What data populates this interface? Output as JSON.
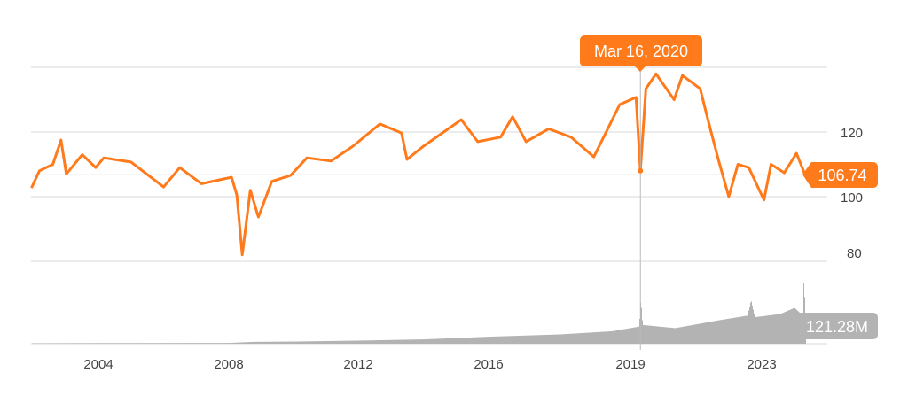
{
  "chart_data": {
    "type": "line",
    "title": "",
    "xlabel": "",
    "ylabel": "",
    "ylim": [
      75,
      140
    ],
    "grid": true,
    "y_ticks": [
      "120",
      "100",
      "80"
    ],
    "y_tick_values": [
      120,
      100,
      80
    ],
    "x_ticks": [
      "2004",
      "2008",
      "2012",
      "2016",
      "2019",
      "2023"
    ],
    "color": "#FF7A1A",
    "volume_color": "#B3B3B3",
    "tooltip": {
      "label": "Mar 16, 2020",
      "date": "2020-03-16",
      "value": 108.0
    },
    "last_price": {
      "label": "106.74",
      "value": 106.74
    },
    "last_volume": {
      "label": "121.28M",
      "value": 121.28
    },
    "series": [
      {
        "values": [
          [
            "2001-12-01",
            102.7
          ],
          [
            "2002-03-01",
            108
          ],
          [
            "2002-08-01",
            110
          ],
          [
            "2002-11-01",
            117.5
          ],
          [
            "2003-01-01",
            107
          ],
          [
            "2003-07-01",
            113
          ],
          [
            "2003-12-01",
            109
          ],
          [
            "2004-03-01",
            112
          ],
          [
            "2005-01-01",
            110.7
          ],
          [
            "2006-01-01",
            103
          ],
          [
            "2006-07-01",
            109
          ],
          [
            "2007-03-01",
            104
          ],
          [
            "2008-02-01",
            106
          ],
          [
            "2008-04-01",
            100.5
          ],
          [
            "2008-06-01",
            82
          ],
          [
            "2008-09-01",
            102
          ],
          [
            "2008-12-01",
            93.7
          ],
          [
            "2009-05-01",
            104.7
          ],
          [
            "2009-12-01",
            106.6
          ],
          [
            "2010-06-01",
            112
          ],
          [
            "2011-03-01",
            111
          ],
          [
            "2011-11-01",
            115.6
          ],
          [
            "2012-09-01",
            122.5
          ],
          [
            "2013-05-01",
            119.7
          ],
          [
            "2013-07-01",
            111.5
          ],
          [
            "2014-01-01",
            115.6
          ],
          [
            "2014-08-01",
            119.7
          ],
          [
            "2015-03-01",
            123.8
          ],
          [
            "2015-09-01",
            117
          ],
          [
            "2016-05-01",
            118.4
          ],
          [
            "2016-09-01",
            124.7
          ],
          [
            "2017-01-15",
            117
          ],
          [
            "2017-09-01",
            121
          ],
          [
            "2018-04-15",
            118.4
          ],
          [
            "2018-12-01",
            112.3
          ],
          [
            "2019-05-15",
            122.5
          ],
          [
            "2019-08-20",
            128.5
          ],
          [
            "2020-02-01",
            130.7
          ],
          [
            "2020-03-16",
            108
          ],
          [
            "2020-05-01",
            133.4
          ],
          [
            "2020-07-25",
            138
          ],
          [
            "2020-12-25",
            130
          ],
          [
            "2021-03-05",
            137.5
          ],
          [
            "2021-08-01",
            133.4
          ],
          [
            "2021-10-15",
            122.5
          ],
          [
            "2022-01-01",
            111.5
          ],
          [
            "2022-03-30",
            100
          ],
          [
            "2022-06-15",
            110
          ],
          [
            "2022-09-15",
            109
          ],
          [
            "2023-01-20",
            99
          ],
          [
            "2023-03-20",
            110
          ],
          [
            "2023-07-10",
            107.4
          ],
          [
            "2023-10-20",
            113.4
          ],
          [
            "2024-01-01",
            106.74
          ]
        ]
      }
    ],
    "volume_ylim": [
      0,
      500
    ],
    "volume": [
      [
        "2001-12-01",
        3
      ],
      [
        "2004-01-01",
        4
      ],
      [
        "2008-01-01",
        5
      ],
      [
        "2008-10-01",
        12
      ],
      [
        "2010-01-01",
        14
      ],
      [
        "2012-01-01",
        20
      ],
      [
        "2014-01-01",
        28
      ],
      [
        "2016-01-01",
        45
      ],
      [
        "2018-01-01",
        60
      ],
      [
        "2019-06-01",
        80
      ],
      [
        "2020-03-01",
        110
      ],
      [
        "2020-03-16",
        290
      ],
      [
        "2020-04-01",
        120
      ],
      [
        "2021-01-01",
        100
      ],
      [
        "2022-01-01",
        150
      ],
      [
        "2022-09-01",
        180
      ],
      [
        "2022-10-01",
        280
      ],
      [
        "2022-11-01",
        170
      ],
      [
        "2023-06-01",
        190
      ],
      [
        "2023-10-01",
        230
      ],
      [
        "2023-12-10",
        180
      ],
      [
        "2023-12-20",
        470
      ],
      [
        "2023-12-28",
        170
      ],
      [
        "2024-01-01",
        121.28
      ]
    ]
  }
}
